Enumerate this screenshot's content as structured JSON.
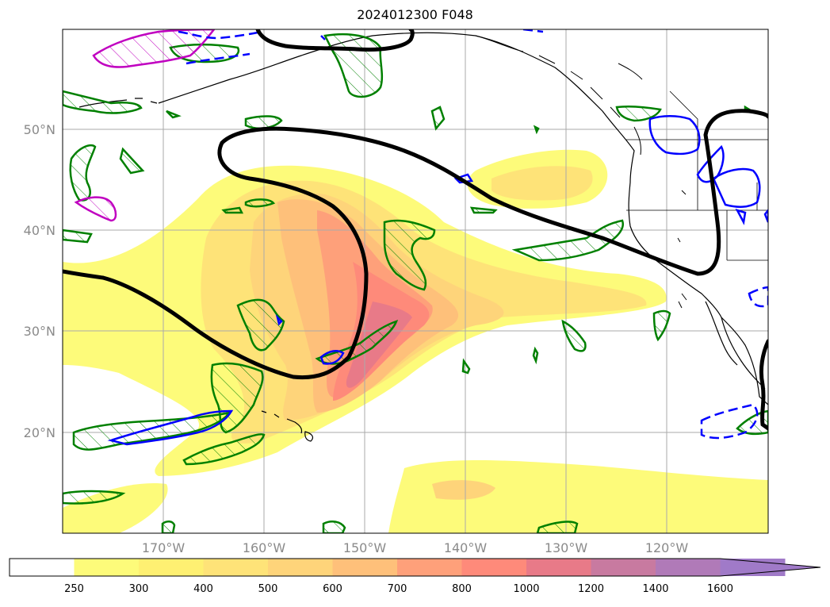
{
  "title": "2024012300 F048",
  "map": {
    "lat_labels": [
      "50°N",
      "40°N",
      "30°N",
      "20°N"
    ],
    "lon_labels": [
      "170°W",
      "160°W",
      "150°W",
      "140°W",
      "130°W",
      "120°W"
    ],
    "extent": {
      "lon": [
        -180,
        -110
      ],
      "lat": [
        10,
        60
      ]
    }
  },
  "colorbar": {
    "levels": [
      "250",
      "300",
      "400",
      "500",
      "600",
      "700",
      "800",
      "1000",
      "1200",
      "1400",
      "1600"
    ],
    "colors": [
      "#ffffff",
      "#fdfb7a",
      "#fef072",
      "#fee378",
      "#fed47a",
      "#fec07a",
      "#fea07a",
      "#fe8a7a",
      "#e87a88",
      "#c87aa0",
      "#b07ab8",
      "#a07ac8"
    ],
    "extend": "max"
  },
  "contours": {
    "thick_line_color": "#000000",
    "green_hatched_color": "#008000",
    "blue_contour_color": "#0000ff",
    "magenta_contour_color": "#c000c0"
  }
}
